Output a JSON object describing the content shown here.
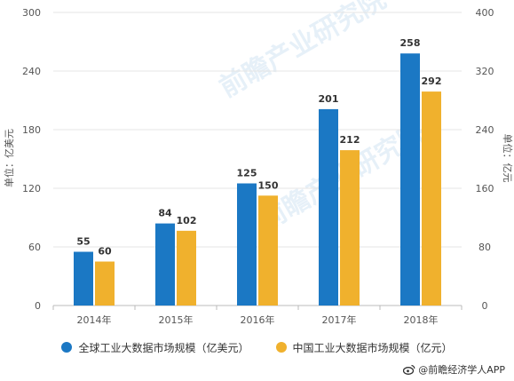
{
  "chart_data": {
    "type": "bar",
    "categories": [
      "2014年",
      "2015年",
      "2016年",
      "2017年",
      "2018年"
    ],
    "series": [
      {
        "name": "全球工业大数据市场规模（亿美元）",
        "values": [
          55,
          84,
          125,
          201,
          258
        ],
        "axis": "left",
        "color": "#1b78c4"
      },
      {
        "name": "中国工业大数据市场规模（亿元）",
        "values": [
          60,
          102,
          150,
          212,
          292
        ],
        "axis": "right",
        "color": "#f0b12d"
      }
    ],
    "ylabel": "单位：亿美元",
    "y2label": "单位：亿元",
    "ylim": [
      0,
      300
    ],
    "y2lim": [
      0,
      400
    ],
    "yticks": [
      "0",
      "60",
      "120",
      "180",
      "240",
      "300"
    ],
    "y2ticks": [
      "0",
      "80",
      "160",
      "240",
      "320",
      "400"
    ],
    "grid": true,
    "legend_position": "bottom"
  },
  "watermark": "前瞻产业研究院",
  "credit": {
    "icon": "weibo-icon",
    "text": "@前瞻经济学人APP"
  }
}
